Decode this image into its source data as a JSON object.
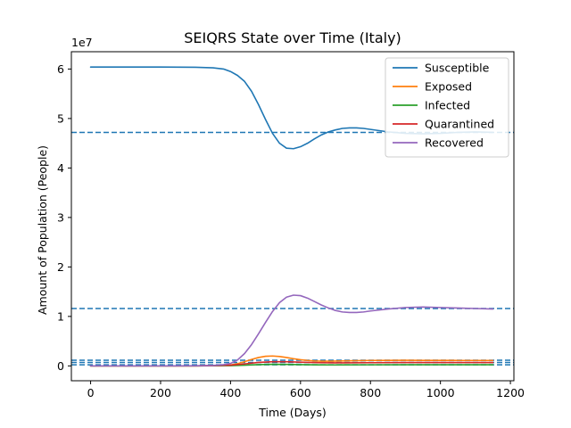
{
  "chart_data": {
    "type": "line",
    "title": "SEIQRS State over Time (Italy)",
    "xlabel": "Time (Days)",
    "ylabel": "Amount of Population (People)",
    "y_offset_label": "1e7",
    "xlim": [
      -55,
      1210
    ],
    "ylim": [
      -3000000,
      63500000
    ],
    "x_ticks": [
      0,
      200,
      400,
      600,
      800,
      1000,
      1200
    ],
    "y_ticks": [
      0,
      10000000,
      20000000,
      30000000,
      40000000,
      50000000,
      60000000
    ],
    "y_tick_labels": [
      "0",
      "1",
      "2",
      "3",
      "4",
      "5",
      "6"
    ],
    "legend_position": "top-right",
    "grid": false,
    "series": [
      {
        "name": "Susceptible",
        "color": "#1f77b4",
        "x": [
          0,
          100,
          200,
          300,
          350,
          380,
          400,
          420,
          440,
          460,
          480,
          500,
          520,
          540,
          560,
          580,
          600,
          620,
          640,
          660,
          680,
          700,
          720,
          740,
          760,
          780,
          800,
          850,
          900,
          950,
          1000,
          1050,
          1100,
          1150
        ],
        "y": [
          60400000,
          60400000,
          60400000,
          60350000,
          60250000,
          60000000,
          59500000,
          58700000,
          57500000,
          55500000,
          52800000,
          49800000,
          47000000,
          45000000,
          44000000,
          43900000,
          44300000,
          45000000,
          45900000,
          46700000,
          47300000,
          47700000,
          48000000,
          48100000,
          48100000,
          48000000,
          47800000,
          47300000,
          47000000,
          46900000,
          47000000,
          47200000,
          47300000,
          47200000
        ]
      },
      {
        "name": "Exposed",
        "color": "#ff7f0e",
        "x": [
          0,
          100,
          200,
          300,
          350,
          400,
          420,
          440,
          460,
          480,
          500,
          520,
          540,
          560,
          580,
          600,
          620,
          640,
          660,
          680,
          700,
          750,
          800,
          850,
          900,
          950,
          1000,
          1050,
          1100,
          1150
        ],
        "y": [
          0,
          0,
          0,
          10000,
          50000,
          200000,
          450000,
          850000,
          1300000,
          1700000,
          1950000,
          2000000,
          1900000,
          1700000,
          1450000,
          1250000,
          1100000,
          1000000,
          950000,
          950000,
          980000,
          1050000,
          1100000,
          1120000,
          1130000,
          1120000,
          1110000,
          1100000,
          1100000,
          1100000
        ]
      },
      {
        "name": "Infected",
        "color": "#2ca02c",
        "x": [
          0,
          100,
          200,
          300,
          350,
          400,
          440,
          480,
          520,
          560,
          600,
          650,
          700,
          800,
          900,
          1000,
          1100,
          1150
        ],
        "y": [
          0,
          0,
          0,
          5000,
          20000,
          60000,
          150000,
          260000,
          320000,
          300000,
          250000,
          210000,
          200000,
          220000,
          230000,
          230000,
          230000,
          230000
        ]
      },
      {
        "name": "Quarantined",
        "color": "#d62728",
        "x": [
          0,
          100,
          200,
          300,
          350,
          400,
          440,
          480,
          520,
          560,
          600,
          650,
          700,
          800,
          900,
          1000,
          1100,
          1150
        ],
        "y": [
          0,
          0,
          0,
          10000,
          50000,
          150000,
          400000,
          700000,
          850000,
          850000,
          750000,
          650000,
          620000,
          650000,
          680000,
          680000,
          680000,
          680000
        ]
      },
      {
        "name": "Recovered",
        "color": "#9467bd",
        "x": [
          0,
          100,
          200,
          300,
          350,
          380,
          400,
          420,
          440,
          460,
          480,
          500,
          520,
          540,
          560,
          580,
          600,
          620,
          640,
          660,
          680,
          700,
          720,
          740,
          760,
          780,
          800,
          850,
          900,
          950,
          1000,
          1050,
          1100,
          1150
        ],
        "y": [
          0,
          0,
          0,
          30000,
          100000,
          250000,
          500000,
          1200000,
          2500000,
          4300000,
          6500000,
          8800000,
          11000000,
          12800000,
          13900000,
          14300000,
          14200000,
          13700000,
          13000000,
          12300000,
          11700000,
          11200000,
          10900000,
          10800000,
          10800000,
          10900000,
          11100000,
          11500000,
          11800000,
          11900000,
          11800000,
          11700000,
          11600000,
          11500000
        ]
      }
    ],
    "reference_lines": [
      {
        "y": 47200000,
        "color": "#1f77b4",
        "style": "dashed"
      },
      {
        "y": 11600000,
        "color": "#1f77b4",
        "style": "dashed"
      },
      {
        "y": 1150000,
        "color": "#1f77b4",
        "style": "dashed"
      },
      {
        "y": 700000,
        "color": "#1f77b4",
        "style": "dashed"
      },
      {
        "y": 230000,
        "color": "#1f77b4",
        "style": "dashed"
      }
    ]
  }
}
